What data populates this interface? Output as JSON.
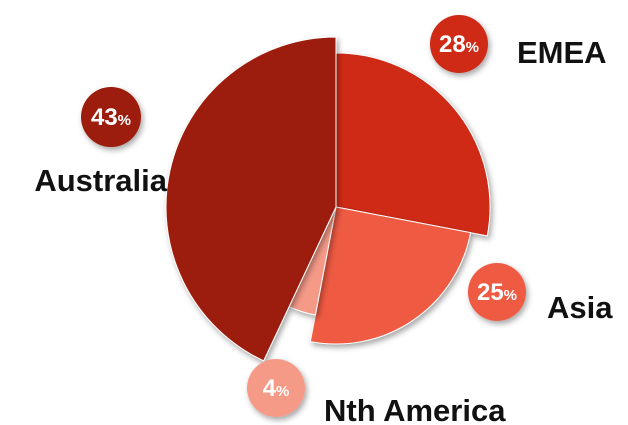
{
  "chart_data": {
    "type": "pie",
    "variant": "exploded-radius",
    "categories": [
      "EMEA",
      "Asia",
      "Nth America",
      "Australia"
    ],
    "values": [
      28,
      25,
      4,
      43
    ],
    "percent_symbol": "%",
    "colors": [
      "#cf2a14",
      "#ef5a43",
      "#f69a88",
      "#9c1c0b"
    ],
    "title": "",
    "legend": "none"
  }
}
